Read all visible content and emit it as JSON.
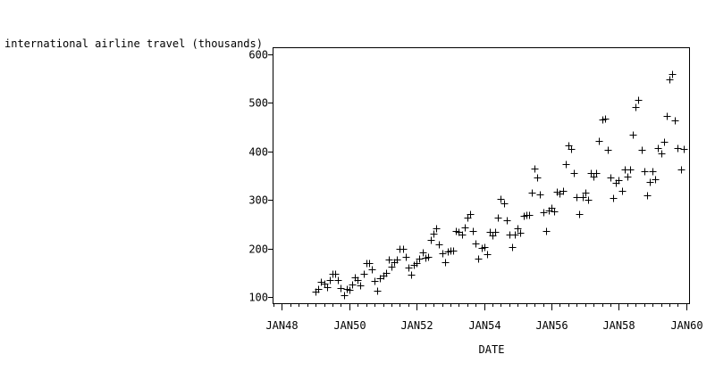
{
  "chart_data": {
    "type": "scatter",
    "marker": "plus",
    "ylabel": "international airline travel (thousands)",
    "xlabel": "DATE",
    "xlim": [
      "1947-10",
      "1960-02"
    ],
    "ylim": [
      88,
      612
    ],
    "yticks": [
      100,
      200,
      300,
      400,
      500,
      600
    ],
    "xticks": [
      {
        "label": "JAN48",
        "date": "1948-01"
      },
      {
        "label": "JAN50",
        "date": "1950-01"
      },
      {
        "label": "JAN52",
        "date": "1952-01"
      },
      {
        "label": "JAN54",
        "date": "1954-01"
      },
      {
        "label": "JAN56",
        "date": "1956-01"
      },
      {
        "label": "JAN58",
        "date": "1958-01"
      },
      {
        "label": "JAN60",
        "date": "1960-01"
      }
    ],
    "grid": false,
    "x": [
      "1949-01",
      "1949-02",
      "1949-03",
      "1949-04",
      "1949-05",
      "1949-06",
      "1949-07",
      "1949-08",
      "1949-09",
      "1949-10",
      "1949-11",
      "1949-12",
      "1950-01",
      "1950-02",
      "1950-03",
      "1950-04",
      "1950-05",
      "1950-06",
      "1950-07",
      "1950-08",
      "1950-09",
      "1950-10",
      "1950-11",
      "1950-12",
      "1951-01",
      "1951-02",
      "1951-03",
      "1951-04",
      "1951-05",
      "1951-06",
      "1951-07",
      "1951-08",
      "1951-09",
      "1951-10",
      "1951-11",
      "1951-12",
      "1952-01",
      "1952-02",
      "1952-03",
      "1952-04",
      "1952-05",
      "1952-06",
      "1952-07",
      "1952-08",
      "1952-09",
      "1952-10",
      "1952-11",
      "1952-12",
      "1953-01",
      "1953-02",
      "1953-03",
      "1953-04",
      "1953-05",
      "1953-06",
      "1953-07",
      "1953-08",
      "1953-09",
      "1953-10",
      "1953-11",
      "1953-12",
      "1954-01",
      "1954-02",
      "1954-03",
      "1954-04",
      "1954-05",
      "1954-06",
      "1954-07",
      "1954-08",
      "1954-09",
      "1954-10",
      "1954-11",
      "1954-12",
      "1955-01",
      "1955-02",
      "1955-03",
      "1955-04",
      "1955-05",
      "1955-06",
      "1955-07",
      "1955-08",
      "1955-09",
      "1955-10",
      "1955-11",
      "1955-12",
      "1956-01",
      "1956-02",
      "1956-03",
      "1956-04",
      "1956-05",
      "1956-06",
      "1956-07",
      "1956-08",
      "1956-09",
      "1956-10",
      "1956-11",
      "1956-12",
      "1957-01",
      "1957-02",
      "1957-03",
      "1957-04",
      "1957-05",
      "1957-06",
      "1957-07",
      "1957-08",
      "1957-09",
      "1957-10",
      "1957-11",
      "1957-12",
      "1958-01",
      "1958-02",
      "1958-03",
      "1958-04",
      "1958-05",
      "1958-06",
      "1958-07",
      "1958-08",
      "1958-09",
      "1958-10",
      "1958-11",
      "1958-12",
      "1959-01",
      "1959-02",
      "1959-03",
      "1959-04",
      "1959-05",
      "1959-06",
      "1959-07",
      "1959-08",
      "1959-09",
      "1959-10",
      "1959-11",
      "1959-12"
    ],
    "values": [
      112,
      118,
      132,
      129,
      121,
      135,
      148,
      148,
      136,
      119,
      104,
      118,
      115,
      126,
      141,
      135,
      125,
      149,
      170,
      170,
      158,
      133,
      114,
      140,
      145,
      150,
      178,
      163,
      172,
      178,
      199,
      199,
      184,
      162,
      146,
      166,
      171,
      180,
      193,
      181,
      183,
      218,
      230,
      242,
      209,
      191,
      172,
      194,
      196,
      196,
      236,
      235,
      229,
      243,
      264,
      272,
      237,
      211,
      180,
      201,
      204,
      188,
      235,
      227,
      234,
      264,
      302,
      293,
      259,
      229,
      203,
      229,
      242,
      233,
      267,
      269,
      270,
      315,
      364,
      347,
      312,
      274,
      237,
      278,
      284,
      277,
      317,
      313,
      318,
      374,
      413,
      405,
      355,
      306,
      271,
      306,
      315,
      301,
      356,
      348,
      355,
      422,
      465,
      467,
      404,
      347,
      305,
      336,
      340,
      318,
      362,
      348,
      363,
      435,
      491,
      505,
      404,
      359,
      310,
      337,
      360,
      342,
      406,
      396,
      420,
      472,
      548,
      559,
      463,
      407,
      362,
      405
    ]
  }
}
